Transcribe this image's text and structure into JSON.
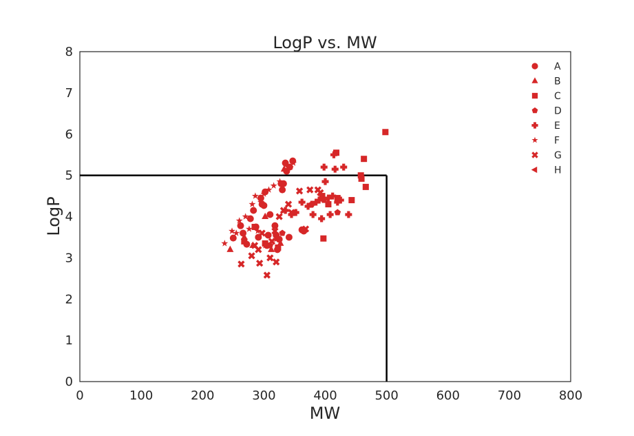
{
  "chart_data": {
    "type": "scatter",
    "title": "LogP vs. MW",
    "xlabel": "MW",
    "ylabel": "LogP",
    "xlim": [
      0,
      800
    ],
    "ylim": [
      0,
      8
    ],
    "xticks": [
      0,
      100,
      200,
      300,
      400,
      500,
      600,
      700,
      800
    ],
    "yticks": [
      0,
      1,
      2,
      3,
      4,
      5,
      6,
      7,
      8
    ],
    "grid": false,
    "legend_position": "top-right",
    "marker_color": "#d62728",
    "reference_lines": [
      {
        "from": [
          0,
          5
        ],
        "to": [
          500,
          5
        ]
      },
      {
        "from": [
          500,
          5
        ],
        "to": [
          500,
          0
        ]
      }
    ],
    "series": [
      {
        "name": "A",
        "marker": "circle",
        "points": [
          [
            250,
            3.48
          ],
          [
            262,
            3.78
          ],
          [
            266,
            3.6
          ],
          [
            272,
            3.33
          ],
          [
            278,
            3.95
          ],
          [
            283,
            4.15
          ],
          [
            287,
            3.75
          ],
          [
            291,
            3.5
          ],
          [
            295,
            4.45
          ],
          [
            297,
            4.3
          ],
          [
            300,
            4.27
          ],
          [
            302,
            4.6
          ],
          [
            305,
            3.3
          ],
          [
            307,
            3.55
          ],
          [
            310,
            4.05
          ],
          [
            318,
            3.78
          ],
          [
            320,
            3.55
          ],
          [
            322,
            3.2
          ],
          [
            325,
            3.45
          ],
          [
            328,
            4.8
          ],
          [
            330,
            4.65
          ],
          [
            332,
            4.8
          ],
          [
            335,
            5.3
          ],
          [
            337,
            5.1
          ],
          [
            342,
            5.2
          ],
          [
            347,
            5.35
          ],
          [
            362,
            3.68
          ],
          [
            365,
            3.65
          ],
          [
            341,
            3.5
          ]
        ]
      },
      {
        "name": "B",
        "marker": "triangle-up",
        "points": [
          [
            245,
            3.2
          ],
          [
            268,
            3.5
          ],
          [
            282,
            3.3
          ],
          [
            302,
            4.0
          ],
          [
            312,
            3.2
          ],
          [
            327,
            3.35
          ],
          [
            333,
            5.15
          ]
        ]
      },
      {
        "name": "C",
        "marker": "square",
        "points": [
          [
            268,
            3.4
          ],
          [
            285,
            3.75
          ],
          [
            302,
            3.35
          ],
          [
            323,
            3.25
          ],
          [
            395,
            4.5
          ],
          [
            397,
            3.47
          ],
          [
            405,
            4.3
          ],
          [
            418,
            5.55
          ],
          [
            420,
            4.45
          ],
          [
            443,
            4.4
          ],
          [
            458,
            5.0
          ],
          [
            459,
            4.92
          ],
          [
            463,
            5.4
          ],
          [
            466,
            4.72
          ],
          [
            498,
            6.05
          ]
        ]
      },
      {
        "name": "D",
        "marker": "pentagon",
        "points": [
          [
            310,
            3.3
          ],
          [
            330,
            3.6
          ],
          [
            365,
            3.65
          ],
          [
            378,
            4.3
          ],
          [
            398,
            4.4
          ],
          [
            420,
            4.1
          ]
        ]
      },
      {
        "name": "E",
        "marker": "plus",
        "points": [
          [
            335,
            4.15
          ],
          [
            345,
            4.05
          ],
          [
            352,
            4.1
          ],
          [
            362,
            4.35
          ],
          [
            372,
            4.25
          ],
          [
            378,
            4.3
          ],
          [
            380,
            4.05
          ],
          [
            385,
            4.35
          ],
          [
            390,
            4.4
          ],
          [
            394,
            3.95
          ],
          [
            398,
            5.2
          ],
          [
            400,
            4.85
          ],
          [
            405,
            4.45
          ],
          [
            408,
            4.05
          ],
          [
            412,
            4.5
          ],
          [
            414,
            5.5
          ],
          [
            416,
            5.15
          ],
          [
            420,
            4.35
          ],
          [
            425,
            4.4
          ],
          [
            430,
            5.2
          ],
          [
            438,
            4.05
          ]
        ]
      },
      {
        "name": "F",
        "marker": "star",
        "points": [
          [
            236,
            3.35
          ],
          [
            248,
            3.65
          ],
          [
            255,
            3.6
          ],
          [
            260,
            3.9
          ],
          [
            270,
            4.0
          ],
          [
            276,
            3.7
          ],
          [
            281,
            4.3
          ],
          [
            286,
            4.5
          ],
          [
            290,
            3.65
          ],
          [
            295,
            4.35
          ],
          [
            300,
            4.55
          ],
          [
            308,
            4.65
          ],
          [
            316,
            4.75
          ],
          [
            326,
            4.85
          ],
          [
            334,
            4.15
          ],
          [
            339,
            5.2
          ],
          [
            343,
            5.2
          ],
          [
            348,
            5.3
          ],
          [
            302,
            3.3
          ],
          [
            320,
            3.45
          ]
        ]
      },
      {
        "name": "G",
        "marker": "x",
        "points": [
          [
            263,
            2.85
          ],
          [
            280,
            3.05
          ],
          [
            285,
            3.3
          ],
          [
            291,
            3.2
          ],
          [
            293,
            2.87
          ],
          [
            297,
            3.6
          ],
          [
            305,
            2.58
          ],
          [
            310,
            3.0
          ],
          [
            313,
            3.4
          ],
          [
            318,
            3.65
          ],
          [
            320,
            2.9
          ],
          [
            325,
            4.0
          ],
          [
            332,
            4.15
          ],
          [
            340,
            4.3
          ],
          [
            345,
            4.1
          ],
          [
            358,
            4.62
          ],
          [
            368,
            3.7
          ],
          [
            375,
            4.65
          ],
          [
            388,
            4.65
          ],
          [
            392,
            4.58
          ]
        ]
      },
      {
        "name": "H",
        "marker": "triangle-left",
        "points": []
      }
    ]
  }
}
